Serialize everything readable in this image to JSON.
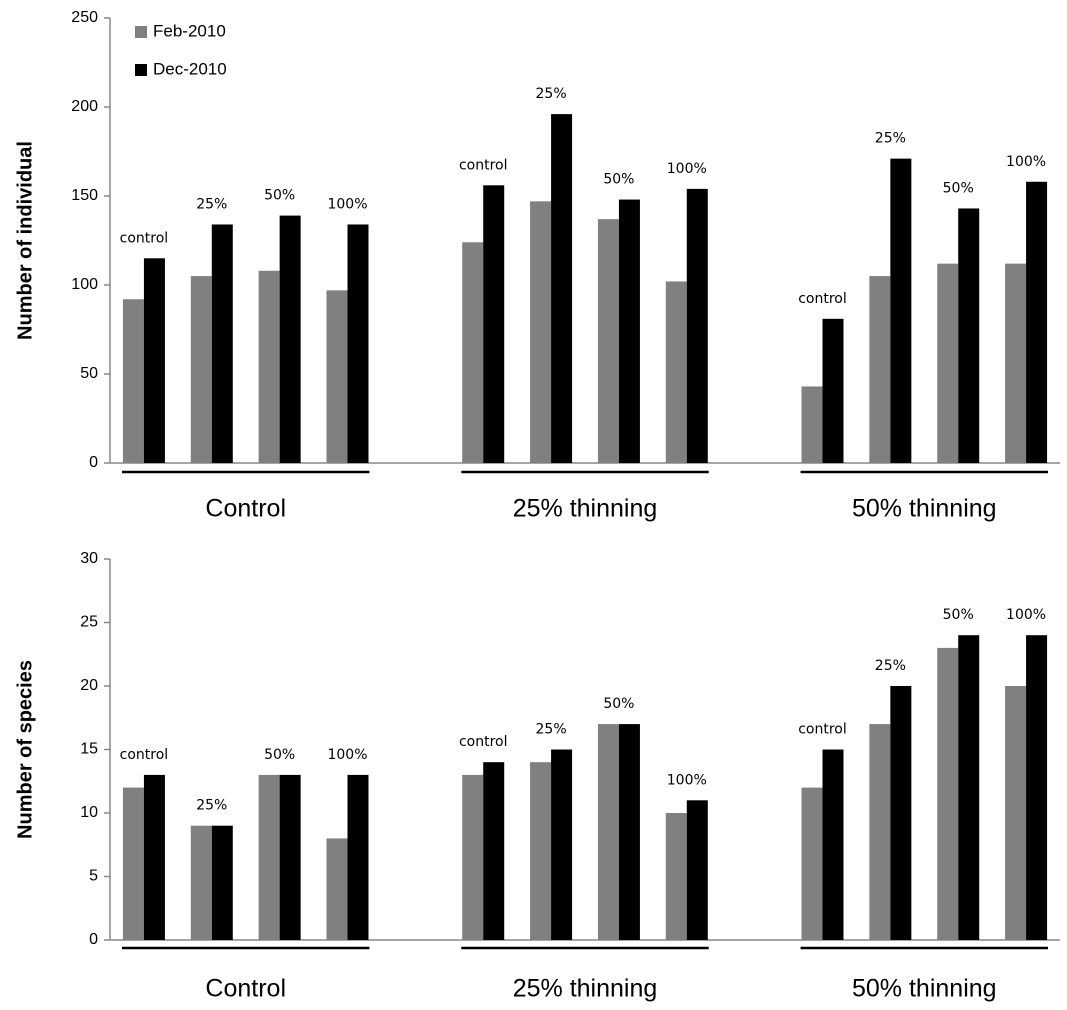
{
  "chart_data": [
    {
      "type": "bar",
      "y_label": "Number of individual",
      "categories": [
        "control",
        "25%",
        "50%",
        "100%",
        "control",
        "25%",
        "50%",
        "100%",
        "control",
        "25%",
        "50%",
        "100%"
      ],
      "groups": [
        "Control",
        "25% thinning",
        "50% thinning"
      ],
      "series": [
        {
          "name": "Feb-2010",
          "color": "#808080",
          "values": [
            92,
            105,
            108,
            97,
            124,
            147,
            137,
            102,
            43,
            105,
            112,
            112
          ]
        },
        {
          "name": "Dec-2010",
          "color": "#000000",
          "values": [
            115,
            134,
            139,
            134,
            156,
            196,
            148,
            154,
            81,
            171,
            143,
            158
          ]
        }
      ],
      "ylim": [
        0,
        250
      ],
      "yticks": [
        0,
        50,
        100,
        150,
        200,
        250
      ],
      "legend": "top-left"
    },
    {
      "type": "bar",
      "y_label": "Number of species",
      "categories": [
        "control",
        "25%",
        "50%",
        "100%",
        "control",
        "25%",
        "50%",
        "100%",
        "control",
        "25%",
        "50%",
        "100%"
      ],
      "groups": [
        "Control",
        "25% thinning",
        "50% thinning"
      ],
      "series": [
        {
          "color": "#808080",
          "values": [
            12,
            9,
            13,
            8,
            13,
            14,
            17,
            10,
            12,
            17,
            23,
            20
          ]
        },
        {
          "color": "#000000",
          "values": [
            13,
            9,
            13,
            13,
            14,
            15,
            17,
            11,
            15,
            20,
            24,
            24
          ]
        }
      ],
      "ylim": [
        0,
        30
      ],
      "yticks": [
        0,
        5,
        10,
        15,
        20,
        25,
        30
      ]
    }
  ]
}
